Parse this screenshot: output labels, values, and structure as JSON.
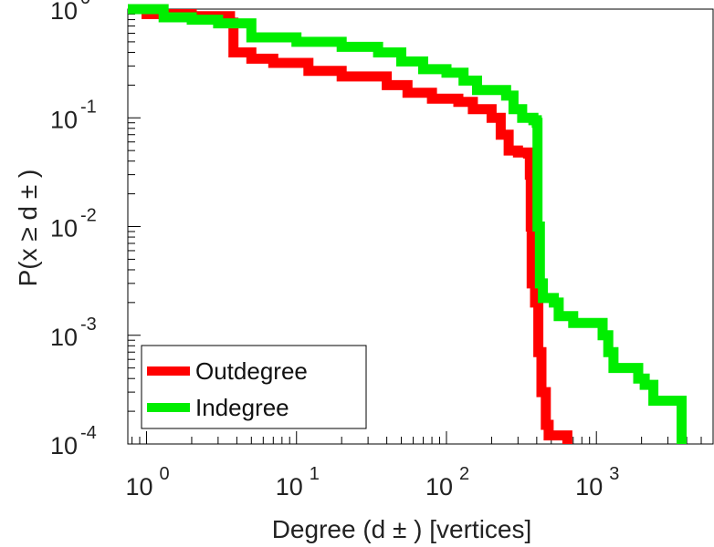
{
  "chart_data": {
    "type": "line",
    "title": "",
    "xlabel": "Degree (d ± ) [vertices]",
    "ylabel": "P(x ≥ d ± )",
    "xscale": "log",
    "yscale": "log",
    "xlim": [
      0.75,
      6000
    ],
    "ylim": [
      0.0001,
      1
    ],
    "grid": false,
    "legend_position": "bottom-left",
    "x_ticks": [
      {
        "base": "10",
        "exp": "0",
        "value": 1
      },
      {
        "base": "10",
        "exp": "1",
        "value": 10
      },
      {
        "base": "10",
        "exp": "2",
        "value": 100
      },
      {
        "base": "10",
        "exp": "3",
        "value": 1000
      }
    ],
    "y_ticks": [
      {
        "base": "10",
        "exp": "0",
        "value": 1
      },
      {
        "base": "10",
        "exp": "-1",
        "value": 0.1
      },
      {
        "base": "10",
        "exp": "-2",
        "value": 0.01
      },
      {
        "base": "10",
        "exp": "-3",
        "value": 0.001
      },
      {
        "base": "10",
        "exp": "-4",
        "value": 0.0001
      }
    ],
    "series": [
      {
        "name": "Outdegree",
        "color": "#ff0000",
        "points": [
          [
            0.75,
            1.0
          ],
          [
            1.0,
            0.9
          ],
          [
            2.0,
            0.86
          ],
          [
            3.6,
            0.75
          ],
          [
            3.8,
            0.4
          ],
          [
            5,
            0.35
          ],
          [
            7,
            0.32
          ],
          [
            12,
            0.27
          ],
          [
            20,
            0.24
          ],
          [
            40,
            0.2
          ],
          [
            55,
            0.17
          ],
          [
            80,
            0.15
          ],
          [
            120,
            0.14
          ],
          [
            150,
            0.12
          ],
          [
            200,
            0.1
          ],
          [
            230,
            0.07
          ],
          [
            260,
            0.05
          ],
          [
            300,
            0.048
          ],
          [
            350,
            0.047
          ],
          [
            360,
            0.03
          ],
          [
            365,
            0.01
          ],
          [
            370,
            0.003
          ],
          [
            390,
            0.002
          ],
          [
            410,
            0.0007
          ],
          [
            430,
            0.0003
          ],
          [
            460,
            0.00015
          ],
          [
            480,
            0.00012
          ],
          [
            620,
            0.00012
          ],
          [
            640,
            0.0001
          ]
        ]
      },
      {
        "name": "Indegree",
        "color": "#00ee00",
        "points": [
          [
            0.75,
            1.0
          ],
          [
            1.2,
            1.0
          ],
          [
            1.3,
            0.84
          ],
          [
            2.0,
            0.8
          ],
          [
            3.0,
            0.74
          ],
          [
            5,
            0.55
          ],
          [
            10,
            0.5
          ],
          [
            20,
            0.45
          ],
          [
            35,
            0.4
          ],
          [
            50,
            0.33
          ],
          [
            70,
            0.28
          ],
          [
            100,
            0.26
          ],
          [
            130,
            0.22
          ],
          [
            160,
            0.18
          ],
          [
            250,
            0.16
          ],
          [
            280,
            0.12
          ],
          [
            320,
            0.1
          ],
          [
            380,
            0.095
          ],
          [
            400,
            0.09
          ],
          [
            405,
            0.01
          ],
          [
            420,
            0.003
          ],
          [
            440,
            0.0022
          ],
          [
            520,
            0.002
          ],
          [
            560,
            0.0015
          ],
          [
            700,
            0.0013
          ],
          [
            1000,
            0.0013
          ],
          [
            1100,
            0.001
          ],
          [
            1200,
            0.0007
          ],
          [
            1300,
            0.0005
          ],
          [
            1900,
            0.0004
          ],
          [
            2100,
            0.00035
          ],
          [
            2400,
            0.00025
          ],
          [
            3500,
            0.00025
          ],
          [
            3700,
            0.0001
          ]
        ]
      }
    ]
  }
}
